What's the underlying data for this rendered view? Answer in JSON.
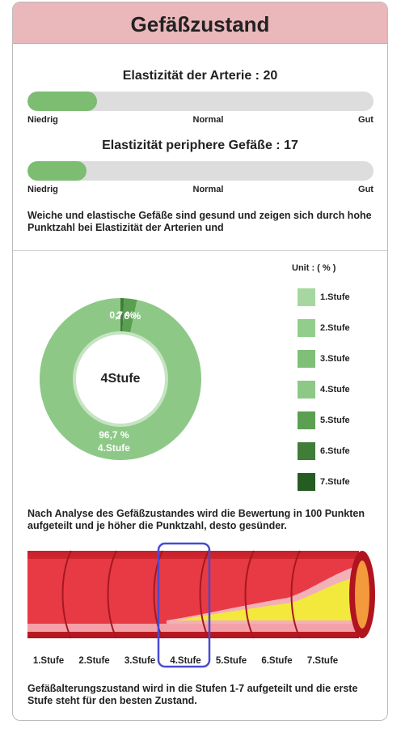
{
  "header": {
    "title": "Gefäßzustand"
  },
  "bars": [
    {
      "label": "Elastizität der Arterie :",
      "value": 20
    },
    {
      "label": "Elastizität periphere Gefäße :",
      "value": 17
    }
  ],
  "scale": [
    "Niedrig",
    "Normal",
    "Gut"
  ],
  "note": "Weiche und elastische  Gefäße sind gesund und zeigen sich durch hohe Punktzahl bei Elastizität der Arterien und",
  "chart_data": {
    "type": "pie",
    "unit": "Unit : ( % )",
    "center_label": "4Stufe",
    "categories": [
      "1.Stufe",
      "2.Stufe",
      "3.Stufe",
      "4.Stufe",
      "5.Stufe",
      "6.Stufe",
      "7.Stufe"
    ],
    "values": [
      0,
      0,
      0,
      96.7,
      2.6,
      0.7,
      0
    ],
    "value_labels": [
      null,
      null,
      null,
      "96,7 %",
      "2,6 %",
      "0,7 %",
      null
    ],
    "colors": [
      "#a6d7a0",
      "#93cd8c",
      "#7fbf77",
      "#8dc887",
      "#5a9f52",
      "#3f7d39",
      "#245c22"
    ]
  },
  "analysis": "Nach Analyse des Gefäßzustandes wird die Bewertung in 100 Punkten aufgeteilt und je höher die Punktzahl, desto gesünder.",
  "stages": [
    "1.Stufe",
    "2.Stufe",
    "3.Stufe",
    "4.Stufe",
    "5.Stufe",
    "6.Stufe",
    "7.Stufe"
  ],
  "footer": "Gefäßalterungszustand wird in die Stufen 1-7 aufgeteilt und die erste Stufe steht für den besten Zustand."
}
